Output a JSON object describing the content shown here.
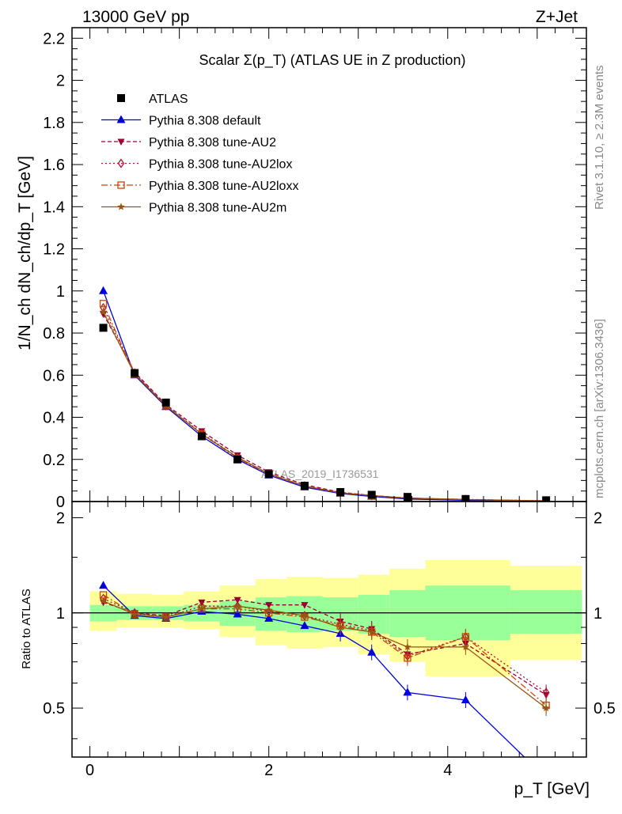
{
  "header": {
    "left": "13000 GeV pp",
    "right": "Z+Jet"
  },
  "plot_title": "Scalar Σ(p_T) (ATLAS UE in Z production)",
  "side_labels": {
    "rivet": "Rivet 3.1.10, ≥ 2.3M events",
    "mcplots": "mcplots.cern.ch [arXiv:1306.3436]"
  },
  "watermark": "ATLAS_2019_I1736531",
  "chart_data": [
    {
      "type": "line",
      "panel": "main",
      "ylabel": "1/N_ch dN_ch/dp_T [GeV]",
      "xlim": [
        -0.2,
        5.55
      ],
      "ylim": [
        0,
        2.25
      ],
      "yticks": [
        0,
        0.2,
        0.4,
        0.6,
        0.8,
        1,
        1.2,
        1.4,
        1.6,
        1.8,
        2,
        2.2
      ],
      "ytick_labels": [
        "0",
        "0.2",
        "0.4",
        "0.6",
        "0.8",
        "1",
        "1.2",
        "1.4",
        "1.6",
        "1.8",
        "2",
        "2.2"
      ],
      "x": [
        0.15,
        0.5,
        0.85,
        1.25,
        1.65,
        2.0,
        2.4,
        2.8,
        3.15,
        3.55,
        4.2,
        5.1
      ],
      "series": [
        {
          "name": "ATLAS",
          "color": "#000000",
          "marker": "square",
          "values": [
            0.825,
            0.61,
            0.47,
            0.31,
            0.2,
            0.13,
            0.075,
            0.045,
            0.032,
            0.022,
            0.012,
            0.006
          ]
        },
        {
          "name": "Pythia 8.308 default",
          "color": "#0000dd",
          "marker": "triangle-up",
          "dash": "",
          "values": [
            1.0,
            0.6,
            0.45,
            0.31,
            0.2,
            0.125,
            0.068,
            0.038,
            0.024,
            0.012,
            0.006,
            0.0015
          ]
        },
        {
          "name": "Pythia 8.308 tune-AU2",
          "color": "#990033",
          "marker": "triangle-down",
          "dash": "5,3",
          "values": [
            0.89,
            0.615,
            0.46,
            0.335,
            0.22,
            0.14,
            0.08,
            0.044,
            0.029,
            0.016,
            0.009,
            0.0033
          ]
        },
        {
          "name": "Pythia 8.308 tune-AU2lox",
          "color": "#aa1133",
          "marker": "diamond-open",
          "dash": "2,3",
          "values": [
            0.92,
            0.61,
            0.455,
            0.325,
            0.21,
            0.132,
            0.074,
            0.042,
            0.028,
            0.016,
            0.01,
            0.0034
          ]
        },
        {
          "name": "Pythia 8.308 tune-AU2loxx",
          "color": "#cc4400",
          "marker": "square-open",
          "dash": "8,3,2,3",
          "values": [
            0.94,
            0.605,
            0.455,
            0.32,
            0.205,
            0.13,
            0.073,
            0.041,
            0.028,
            0.016,
            0.01,
            0.0031
          ]
        },
        {
          "name": "Pythia 8.308 tune-AU2m",
          "color": "#995511",
          "marker": "star",
          "dash": "",
          "values": [
            0.9,
            0.605,
            0.455,
            0.32,
            0.21,
            0.132,
            0.074,
            0.041,
            0.028,
            0.017,
            0.0095,
            0.003
          ]
        }
      ]
    },
    {
      "type": "line",
      "panel": "ratio",
      "xlabel": "p_T [GeV]",
      "ylabel": "Ratio to ATLAS",
      "xlim": [
        -0.2,
        5.55
      ],
      "ylim": [
        0.35,
        2.25
      ],
      "xticks": [
        0,
        2,
        4
      ],
      "xtick_labels": [
        "0",
        "2",
        "4"
      ],
      "yticks": [
        0.5,
        1,
        2
      ],
      "ytick_labels": [
        "0.5",
        "1",
        "2"
      ],
      "x": [
        0.15,
        0.5,
        0.85,
        1.25,
        1.65,
        2.0,
        2.4,
        2.8,
        3.15,
        3.55,
        4.2,
        5.1
      ],
      "bin_edges": [
        0.0,
        0.3,
        0.7,
        1.05,
        1.45,
        1.85,
        2.2,
        2.6,
        3.0,
        3.35,
        3.75,
        4.7,
        5.5
      ],
      "band_yellow": [
        [
          0.88,
          1.17
        ],
        [
          0.9,
          1.15
        ],
        [
          0.9,
          1.14
        ],
        [
          0.89,
          1.17
        ],
        [
          0.84,
          1.22
        ],
        [
          0.79,
          1.28
        ],
        [
          0.77,
          1.3
        ],
        [
          0.78,
          1.29
        ],
        [
          0.74,
          1.32
        ],
        [
          0.7,
          1.38
        ],
        [
          0.63,
          1.47
        ],
        [
          0.71,
          1.41
        ]
      ],
      "band_green": [
        [
          0.94,
          1.06
        ],
        [
          0.95,
          1.05
        ],
        [
          0.95,
          1.05
        ],
        [
          0.94,
          1.06
        ],
        [
          0.91,
          1.09
        ],
        [
          0.88,
          1.12
        ],
        [
          0.87,
          1.13
        ],
        [
          0.88,
          1.12
        ],
        [
          0.86,
          1.14
        ],
        [
          0.84,
          1.18
        ],
        [
          0.82,
          1.22
        ],
        [
          0.86,
          1.18
        ]
      ],
      "series": [
        {
          "name": "Pythia 8.308 default",
          "color": "#0000dd",
          "marker": "triangle-up",
          "dash": "",
          "values": [
            1.22,
            0.98,
            0.96,
            1.01,
            0.99,
            0.96,
            0.91,
            0.86,
            0.75,
            0.56,
            0.53,
            0.3
          ]
        },
        {
          "name": "Pythia 8.308 tune-AU2",
          "color": "#990033",
          "marker": "triangle-down",
          "dash": "5,3",
          "values": [
            1.08,
            1.0,
            0.98,
            1.08,
            1.1,
            1.06,
            1.06,
            0.94,
            0.89,
            0.74,
            0.8,
            0.55
          ]
        },
        {
          "name": "Pythia 8.308 tune-AU2lox",
          "color": "#aa1133",
          "marker": "diamond-open",
          "dash": "2,3",
          "values": [
            1.11,
            1.0,
            0.97,
            1.05,
            1.05,
            1.01,
            0.98,
            0.92,
            0.88,
            0.73,
            0.84,
            0.56
          ]
        },
        {
          "name": "Pythia 8.308 tune-AU2loxx",
          "color": "#cc4400",
          "marker": "square-open",
          "dash": "8,3,2,3",
          "values": [
            1.14,
            0.99,
            0.97,
            1.03,
            1.03,
            1.0,
            0.97,
            0.91,
            0.87,
            0.72,
            0.84,
            0.51
          ]
        },
        {
          "name": "Pythia 8.308 tune-AU2m",
          "color": "#995511",
          "marker": "star",
          "dash": "",
          "values": [
            1.09,
            0.99,
            0.97,
            1.03,
            1.05,
            1.02,
            0.98,
            0.9,
            0.87,
            0.78,
            0.78,
            0.5
          ]
        }
      ]
    }
  ]
}
